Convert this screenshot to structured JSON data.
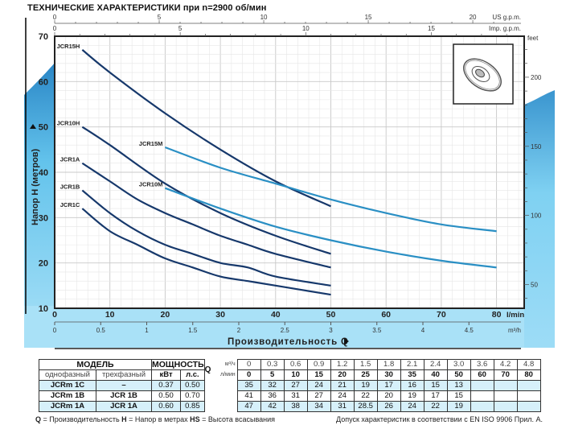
{
  "header": {
    "title": "ТЕХНИЧЕСКИЕ ХАРАКТЕРИСТИКИ при n=2900 об/мин"
  },
  "chart_data": {
    "type": "line",
    "title": "ТЕХНИЧЕСКИЕ ХАРАКТЕРИСТИКИ при n=2900 об/мин",
    "xlabel": "Производительность Q",
    "ylabel": "Напор H (метров)",
    "x_unit": "l/min",
    "xlim": [
      0,
      85
    ],
    "ylim": [
      10,
      70
    ],
    "grid": true,
    "x_ticks": [
      0,
      10,
      20,
      30,
      40,
      50,
      60,
      70,
      80
    ],
    "y_ticks": [
      10,
      20,
      30,
      40,
      50,
      60,
      70
    ],
    "secondary_axes": {
      "m3h": {
        "label": "m³/h",
        "ticks": [
          0,
          0.5,
          1,
          1.5,
          2,
          2.5,
          3,
          3.5,
          4,
          4.5
        ]
      },
      "us_gpm": {
        "label": "US g.p.m.",
        "ticks": [
          0,
          5,
          10,
          15,
          20
        ]
      },
      "imp_gpm": {
        "label": "Imp. g.p.m.",
        "ticks": [
          0,
          5,
          10,
          15
        ]
      },
      "feet": {
        "label": "feet",
        "ticks": [
          50,
          100,
          150,
          200
        ]
      }
    },
    "series": [
      {
        "name": "JCR15H",
        "color": "#16386b",
        "x": [
          5,
          10,
          20,
          30,
          40,
          50
        ],
        "y": [
          67,
          62,
          53,
          45,
          38,
          32.5
        ]
      },
      {
        "name": "JCR10H",
        "color": "#16386b",
        "x": [
          5,
          10,
          20,
          30,
          40,
          50
        ],
        "y": [
          50,
          46,
          37.5,
          31,
          26,
          22
        ]
      },
      {
        "name": "JCR1A",
        "color": "#16386b",
        "x": [
          5,
          10,
          15,
          20,
          25,
          30,
          35,
          40,
          50
        ],
        "y": [
          42,
          38,
          34,
          31,
          28.5,
          26,
          24,
          22,
          19
        ]
      },
      {
        "name": "JCR1B",
        "color": "#16386b",
        "x": [
          5,
          10,
          15,
          20,
          25,
          30,
          35,
          40,
          50
        ],
        "y": [
          36,
          31,
          27,
          24,
          22,
          20,
          19,
          17,
          15
        ]
      },
      {
        "name": "JCR1C",
        "color": "#16386b",
        "x": [
          5,
          10,
          15,
          20,
          25,
          30,
          35,
          40,
          50
        ],
        "y": [
          32,
          27,
          24,
          21,
          19,
          17,
          16,
          15,
          13
        ]
      },
      {
        "name": "JCR15M",
        "color": "#2a8fc4",
        "x": [
          20,
          30,
          40,
          50,
          60,
          70,
          80
        ],
        "y": [
          45.5,
          41,
          37.5,
          34,
          31,
          28.5,
          27
        ]
      },
      {
        "name": "JCR10M",
        "color": "#2a8fc4",
        "x": [
          20,
          30,
          40,
          50,
          60,
          70,
          80
        ],
        "y": [
          36.5,
          32,
          28,
          25,
          22.5,
          20.5,
          19
        ]
      }
    ]
  },
  "axis_labels": {
    "x": "Производительность Q",
    "y": "Напор H   (метров)",
    "lmin": "l/min",
    "m3h": "m³/h",
    "us": "US g.p.m.",
    "imp": "Imp. g.p.m.",
    "feet": "feet"
  },
  "table": {
    "model_header": "МОДЕЛЬ",
    "power_header": "МОЩНОСТЬ",
    "q_label": "Q",
    "single_phase": "однофазный",
    "three_phase": "трехфазный",
    "kw": "кВт",
    "hp": "л.с.",
    "unit_m3h": "м³/ч",
    "unit_lmin": "л/мин",
    "flow_m3h": [
      "0",
      "0.3",
      "0.6",
      "0.9",
      "1.2",
      "1.5",
      "1.8",
      "2.1",
      "2.4",
      "3.0",
      "3.6",
      "4.2",
      "4.8"
    ],
    "flow_lmin": [
      "0",
      "5",
      "10",
      "15",
      "20",
      "25",
      "30",
      "35",
      "40",
      "50",
      "60",
      "70",
      "80"
    ],
    "rows": [
      {
        "single": "JCRm  1C",
        "three": "–",
        "kw": "0.37",
        "hp": "0.50",
        "h": [
          "35",
          "32",
          "27",
          "24",
          "21",
          "19",
          "17",
          "16",
          "15",
          "13",
          "",
          "",
          ""
        ]
      },
      {
        "single": "JCRm  1B",
        "three": "JCR  1B",
        "kw": "0.50",
        "hp": "0.70",
        "h": [
          "41",
          "36",
          "31",
          "27",
          "24",
          "22",
          "20",
          "19",
          "17",
          "15",
          "",
          "",
          ""
        ]
      },
      {
        "single": "JCRm  1A",
        "three": "JCR  1A",
        "kw": "0.60",
        "hp": "0.85",
        "h": [
          "47",
          "42",
          "38",
          "34",
          "31",
          "28.5",
          "26",
          "24",
          "22",
          "19",
          "",
          "",
          ""
        ]
      }
    ]
  },
  "footer": {
    "q_abbr": "Q",
    "q_text": " = Производительность  ",
    "h_abbr": "H",
    "h_text": " = Напор в метрах  ",
    "hs_abbr": "HS",
    "hs_text": " = Высота всасывания",
    "norm": "Допуск характеристик в соответствии с EN ISO 9906 Прил.  A."
  }
}
